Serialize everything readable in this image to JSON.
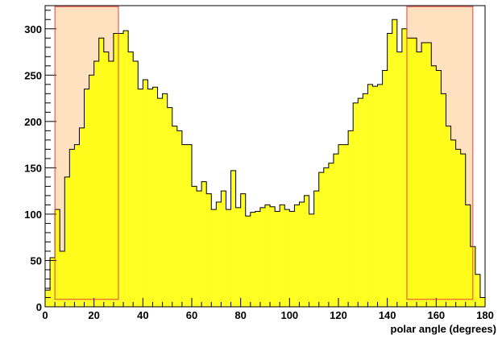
{
  "chart_data": {
    "type": "bar",
    "title": "",
    "xlabel": "polar angle (degrees)",
    "ylabel": "",
    "xlim": [
      0,
      180
    ],
    "ylim": [
      0,
      325
    ],
    "grid": false,
    "legend": "none",
    "bin_width": 2,
    "x_ticks": [
      "0",
      "20",
      "40",
      "60",
      "80",
      "100",
      "120",
      "140",
      "160",
      "180"
    ],
    "y_ticks": [
      "0",
      "50",
      "100",
      "150",
      "200",
      "250",
      "300"
    ],
    "x_tick_values": [
      0,
      20,
      40,
      60,
      80,
      100,
      120,
      140,
      160,
      180
    ],
    "y_tick_values": [
      0,
      50,
      100,
      150,
      200,
      250,
      300
    ],
    "series": [
      {
        "x": [
          1,
          3,
          5,
          7,
          9,
          11,
          13,
          15,
          17,
          19,
          21,
          23,
          25,
          27,
          29,
          31,
          33,
          35,
          37,
          39,
          41,
          43,
          45,
          47,
          49,
          51,
          53,
          55,
          57,
          59,
          61,
          63,
          65,
          67,
          69,
          71,
          73,
          75,
          77,
          79,
          81,
          83,
          85,
          87,
          89,
          91,
          93,
          95,
          97,
          99,
          101,
          103,
          105,
          107,
          109,
          111,
          113,
          115,
          117,
          119,
          121,
          123,
          125,
          127,
          129,
          131,
          133,
          135,
          137,
          139,
          141,
          143,
          145,
          147,
          149,
          151,
          153,
          155,
          157,
          159,
          161,
          163,
          165,
          167,
          169,
          171,
          173,
          175,
          177,
          179
        ],
        "values": [
          18,
          53,
          105,
          60,
          140,
          170,
          175,
          193,
          235,
          250,
          265,
          290,
          275,
          265,
          295,
          295,
          298,
          275,
          265,
          235,
          245,
          235,
          237,
          225,
          230,
          215,
          195,
          190,
          175,
          175,
          130,
          125,
          135,
          122,
          105,
          113,
          125,
          105,
          147,
          107,
          122,
          98,
          102,
          103,
          107,
          110,
          108,
          103,
          110,
          105,
          103,
          110,
          113,
          120,
          100,
          125,
          145,
          150,
          155,
          165,
          175,
          175,
          190,
          220,
          225,
          230,
          240,
          238,
          240,
          255,
          295,
          310,
          275,
          300,
          290,
          290,
          275,
          285,
          285,
          260,
          255,
          230,
          195,
          180,
          170,
          165,
          110,
          65,
          35,
          10
        ]
      }
    ],
    "highlight_regions": [
      {
        "x_start": 4,
        "x_end": 30,
        "y_start": 8,
        "y_end": 324
      },
      {
        "x_start": 148,
        "x_end": 175,
        "y_start": 8,
        "y_end": 324
      }
    ],
    "colors": {
      "fill": "#ffff00",
      "outline": "#000000",
      "region_fill": "#ffdcb4",
      "region_border": "#e8403c"
    }
  }
}
